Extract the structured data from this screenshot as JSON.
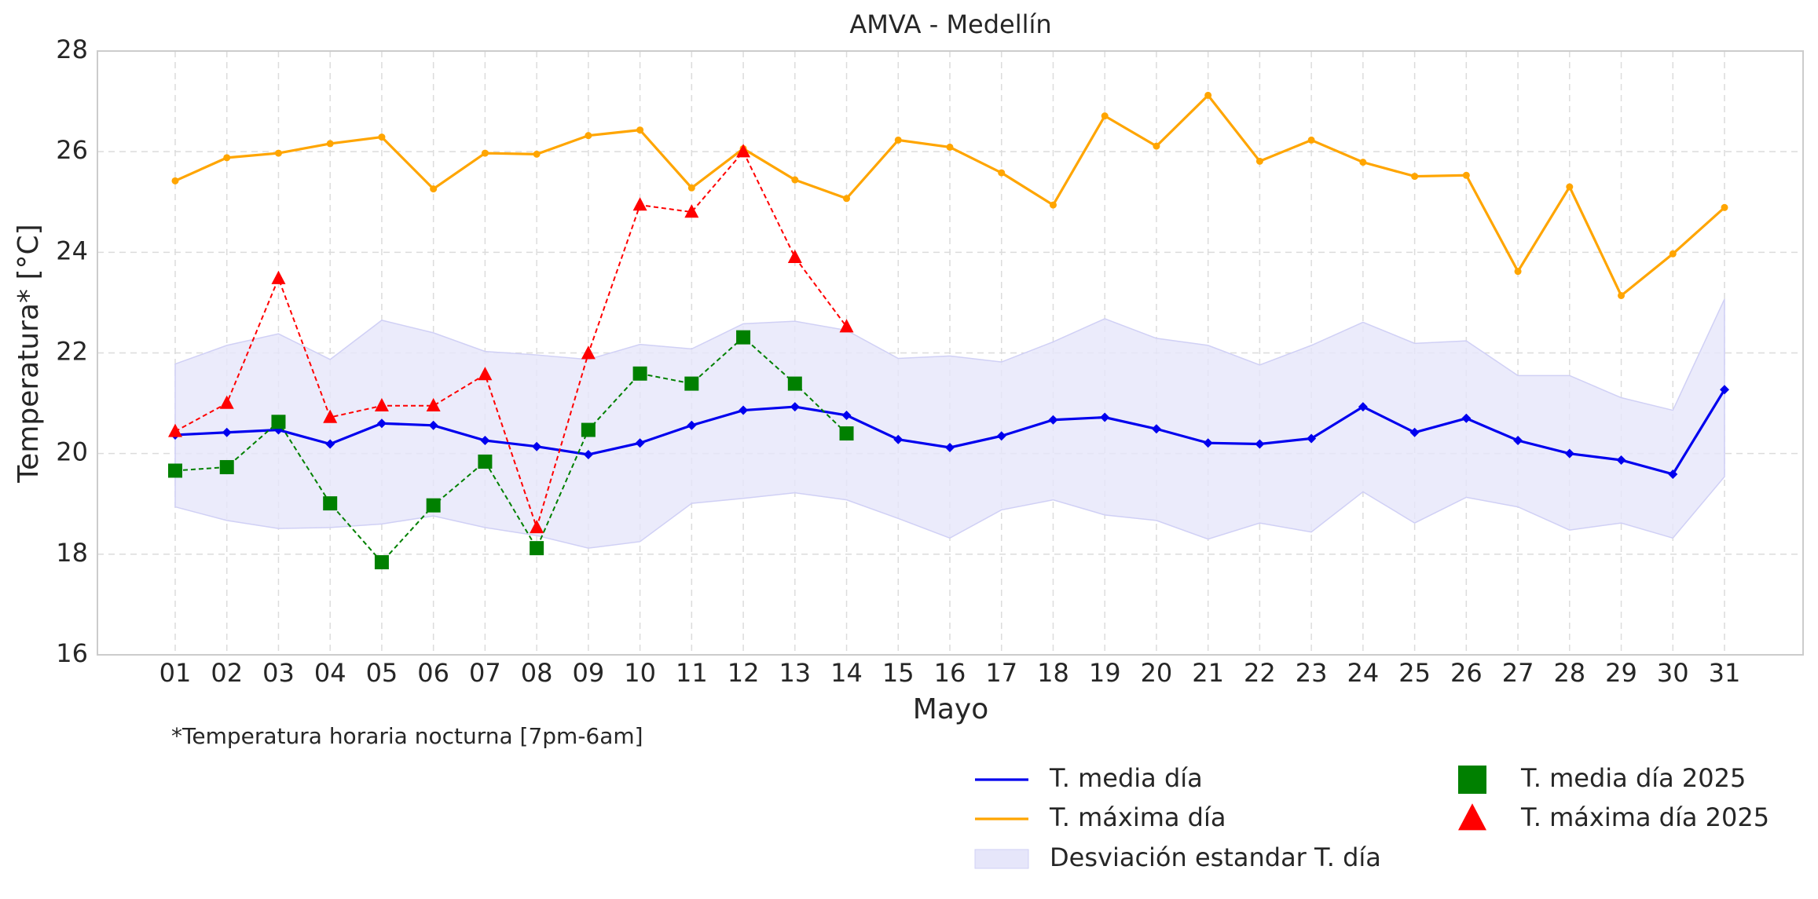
{
  "chart_data": {
    "type": "line",
    "title": "AMVA - Medellín",
    "xlabel": "Mayo",
    "ylabel": "Temperatura* [°C]",
    "note": "*Temperatura horaria nocturna [7pm-6am]",
    "categories": [
      "01",
      "02",
      "03",
      "04",
      "05",
      "06",
      "07",
      "08",
      "09",
      "10",
      "11",
      "12",
      "13",
      "14",
      "15",
      "16",
      "17",
      "18",
      "19",
      "20",
      "21",
      "22",
      "23",
      "24",
      "25",
      "26",
      "27",
      "28",
      "29",
      "30",
      "31"
    ],
    "ylim": [
      16,
      28
    ],
    "yticks": [
      16,
      18,
      20,
      22,
      24,
      26,
      28
    ],
    "grid": true,
    "band": {
      "name": "Desviación estandar T. día",
      "color": "#e6e6fa",
      "upper": [
        21.78,
        22.15,
        22.38,
        21.87,
        22.65,
        22.4,
        22.03,
        21.96,
        21.87,
        22.17,
        22.08,
        22.58,
        22.63,
        22.45,
        21.89,
        21.94,
        21.82,
        22.22,
        22.68,
        22.29,
        22.15,
        21.76,
        22.15,
        22.61,
        22.19,
        22.24,
        21.55,
        21.55,
        21.11,
        20.86,
        23.07
      ],
      "lower": [
        18.94,
        18.67,
        18.51,
        18.53,
        18.6,
        18.76,
        18.53,
        18.37,
        18.12,
        18.25,
        19.01,
        19.11,
        19.22,
        19.08,
        18.71,
        18.32,
        18.88,
        19.08,
        18.78,
        18.67,
        18.3,
        18.62,
        18.44,
        19.24,
        18.62,
        19.13,
        18.94,
        18.48,
        18.62,
        18.32,
        19.54
      ]
    },
    "series": [
      {
        "name": "T. media día",
        "color": "#0000ee",
        "marker": "diamond",
        "dashed": false,
        "values": [
          20.37,
          20.42,
          20.47,
          20.19,
          20.6,
          20.56,
          20.26,
          20.14,
          19.98,
          20.21,
          20.56,
          20.86,
          20.93,
          20.76,
          20.28,
          20.12,
          20.35,
          20.67,
          20.72,
          20.49,
          20.21,
          20.19,
          20.3,
          20.93,
          20.42,
          20.7,
          20.26,
          20.0,
          19.87,
          19.59,
          21.27
        ]
      },
      {
        "name": "T. máxima día",
        "color": "#ffa500",
        "marker": "circle",
        "dashed": false,
        "values": [
          25.42,
          25.88,
          25.97,
          26.16,
          26.29,
          25.26,
          25.97,
          25.95,
          26.32,
          26.43,
          25.28,
          26.06,
          25.44,
          25.07,
          26.23,
          26.09,
          25.58,
          24.94,
          26.71,
          26.11,
          27.12,
          25.81,
          26.23,
          25.79,
          25.51,
          25.53,
          23.62,
          25.3,
          23.14,
          23.97,
          24.89
        ]
      },
      {
        "name": "T. media día 2025",
        "color": "#008000",
        "marker": "square",
        "dashed": true,
        "values": [
          19.66,
          19.73,
          20.63,
          19.01,
          17.84,
          18.97,
          19.84,
          18.12,
          20.47,
          21.59,
          21.39,
          22.31,
          21.39,
          20.4,
          null,
          null,
          null,
          null,
          null,
          null,
          null,
          null,
          null,
          null,
          null,
          null,
          null,
          null,
          null,
          null,
          null
        ]
      },
      {
        "name": "T. máxima día 2025",
        "color": "#ff0000",
        "marker": "triangle",
        "dashed": true,
        "values": [
          20.44,
          21.0,
          23.48,
          20.72,
          20.95,
          20.95,
          21.57,
          18.53,
          21.99,
          24.94,
          24.8,
          26.0,
          23.9,
          22.52,
          null,
          null,
          null,
          null,
          null,
          null,
          null,
          null,
          null,
          null,
          null,
          null,
          null,
          null,
          null,
          null,
          null
        ]
      }
    ]
  }
}
